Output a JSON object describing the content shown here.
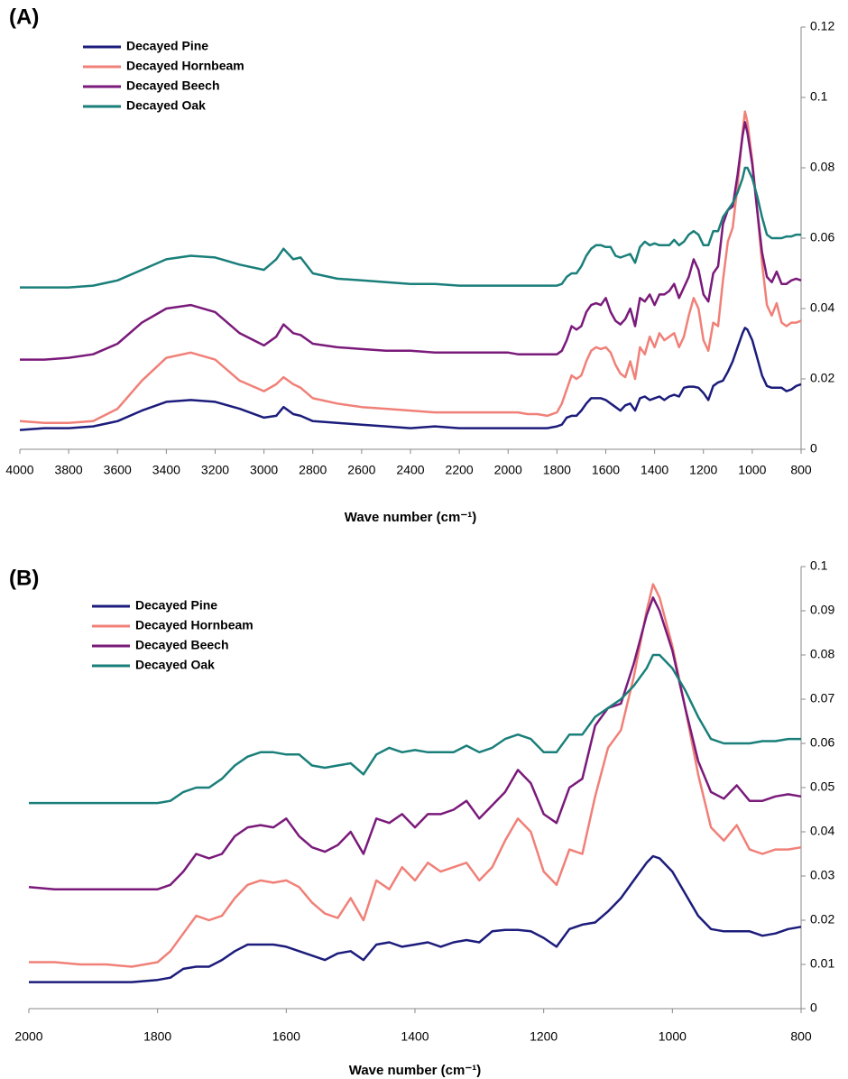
{
  "chart_data": [
    {
      "type": "line",
      "title": "(A)",
      "xlabel": "Wave number (cm⁻¹)",
      "xlim": [
        4000,
        800
      ],
      "xticks": [
        4000,
        3800,
        3600,
        3400,
        3200,
        3000,
        2800,
        2600,
        2400,
        2200,
        2000,
        1800,
        1600,
        1400,
        1200,
        1000,
        800
      ],
      "ylim": [
        0,
        0.12
      ],
      "yticks": [
        0,
        0.02,
        0.04,
        0.06,
        0.08,
        0.1,
        0.12
      ],
      "legend": "upper left",
      "x": [
        4000,
        3900,
        3800,
        3700,
        3600,
        3500,
        3400,
        3300,
        3200,
        3100,
        3000,
        2950,
        2920,
        2880,
        2850,
        2800,
        2700,
        2600,
        2500,
        2400,
        2300,
        2200,
        2100,
        2000,
        1960,
        1920,
        1880,
        1840,
        1800,
        1780,
        1760,
        1740,
        1720,
        1700,
        1680,
        1660,
        1640,
        1620,
        1600,
        1580,
        1560,
        1540,
        1520,
        1500,
        1480,
        1460,
        1440,
        1420,
        1400,
        1380,
        1360,
        1340,
        1320,
        1300,
        1280,
        1260,
        1240,
        1220,
        1200,
        1180,
        1160,
        1140,
        1120,
        1100,
        1080,
        1060,
        1040,
        1030,
        1020,
        1000,
        980,
        960,
        940,
        920,
        900,
        880,
        860,
        840,
        820,
        800
      ],
      "series": [
        {
          "name": "Decayed Pine",
          "color": "#1c1c7c",
          "values": [
            0.0055,
            0.006,
            0.006,
            0.0065,
            0.008,
            0.011,
            0.0135,
            0.014,
            0.0135,
            0.0115,
            0.009,
            0.0095,
            0.012,
            0.01,
            0.0095,
            0.008,
            0.0075,
            0.007,
            0.0065,
            0.006,
            0.0065,
            0.006,
            0.006,
            0.006,
            0.006,
            0.006,
            0.006,
            0.006,
            0.0065,
            0.007,
            0.009,
            0.0095,
            0.0095,
            0.011,
            0.013,
            0.0145,
            0.0145,
            0.0145,
            0.014,
            0.013,
            0.012,
            0.011,
            0.0125,
            0.013,
            0.011,
            0.0145,
            0.015,
            0.014,
            0.0145,
            0.015,
            0.014,
            0.015,
            0.0155,
            0.015,
            0.0175,
            0.0178,
            0.0178,
            0.0175,
            0.016,
            0.014,
            0.018,
            0.019,
            0.0195,
            0.022,
            0.025,
            0.029,
            0.033,
            0.0345,
            0.034,
            0.031,
            0.026,
            0.021,
            0.018,
            0.0175,
            0.0175,
            0.0175,
            0.0165,
            0.017,
            0.018,
            0.0185
          ]
        },
        {
          "name": "Decayed Hornbeam",
          "color": "#f08078",
          "values": [
            0.008,
            0.0075,
            0.0075,
            0.008,
            0.0115,
            0.0195,
            0.026,
            0.0275,
            0.0255,
            0.0195,
            0.0165,
            0.0185,
            0.0205,
            0.0185,
            0.0175,
            0.0145,
            0.013,
            0.012,
            0.0115,
            0.011,
            0.0105,
            0.0105,
            0.0105,
            0.0105,
            0.0105,
            0.01,
            0.01,
            0.0095,
            0.0105,
            0.013,
            0.017,
            0.021,
            0.02,
            0.021,
            0.025,
            0.028,
            0.029,
            0.0285,
            0.029,
            0.0275,
            0.024,
            0.0215,
            0.0205,
            0.025,
            0.02,
            0.029,
            0.027,
            0.032,
            0.029,
            0.033,
            0.031,
            0.032,
            0.033,
            0.029,
            0.032,
            0.038,
            0.043,
            0.04,
            0.031,
            0.028,
            0.036,
            0.035,
            0.048,
            0.059,
            0.063,
            0.075,
            0.09,
            0.096,
            0.093,
            0.082,
            0.068,
            0.053,
            0.041,
            0.038,
            0.0415,
            0.036,
            0.035,
            0.036,
            0.036,
            0.0365
          ]
        },
        {
          "name": "Decayed Beech",
          "color": "#7a1a7a",
          "values": [
            0.0255,
            0.0255,
            0.026,
            0.027,
            0.03,
            0.036,
            0.04,
            0.041,
            0.039,
            0.033,
            0.0295,
            0.032,
            0.0355,
            0.033,
            0.0325,
            0.03,
            0.029,
            0.0285,
            0.028,
            0.028,
            0.0275,
            0.0275,
            0.0275,
            0.0275,
            0.027,
            0.027,
            0.027,
            0.027,
            0.027,
            0.028,
            0.031,
            0.035,
            0.034,
            0.035,
            0.039,
            0.041,
            0.0415,
            0.041,
            0.043,
            0.039,
            0.0365,
            0.0355,
            0.037,
            0.04,
            0.035,
            0.043,
            0.042,
            0.044,
            0.041,
            0.044,
            0.044,
            0.045,
            0.047,
            0.043,
            0.046,
            0.049,
            0.054,
            0.051,
            0.044,
            0.042,
            0.05,
            0.052,
            0.064,
            0.068,
            0.069,
            0.078,
            0.089,
            0.093,
            0.09,
            0.081,
            0.068,
            0.056,
            0.049,
            0.0475,
            0.0505,
            0.047,
            0.047,
            0.048,
            0.0485,
            0.048
          ]
        },
        {
          "name": "Decayed Oak",
          "color": "#1a7f7a",
          "values": [
            0.046,
            0.046,
            0.046,
            0.0465,
            0.048,
            0.051,
            0.054,
            0.055,
            0.0545,
            0.0525,
            0.051,
            0.054,
            0.057,
            0.054,
            0.0545,
            0.05,
            0.0485,
            0.048,
            0.0475,
            0.047,
            0.047,
            0.0465,
            0.0465,
            0.0465,
            0.0465,
            0.0465,
            0.0465,
            0.0465,
            0.0465,
            0.047,
            0.049,
            0.05,
            0.05,
            0.052,
            0.055,
            0.057,
            0.058,
            0.058,
            0.0575,
            0.0575,
            0.055,
            0.0545,
            0.055,
            0.0555,
            0.053,
            0.0575,
            0.059,
            0.058,
            0.0585,
            0.058,
            0.058,
            0.058,
            0.0595,
            0.058,
            0.059,
            0.061,
            0.062,
            0.061,
            0.058,
            0.058,
            0.062,
            0.062,
            0.066,
            0.068,
            0.07,
            0.073,
            0.077,
            0.08,
            0.08,
            0.077,
            0.072,
            0.066,
            0.061,
            0.06,
            0.06,
            0.06,
            0.0605,
            0.0605,
            0.061,
            0.061
          ]
        }
      ]
    },
    {
      "type": "line",
      "title": "(B)",
      "xlabel": "Wave number (cm⁻¹)",
      "xlim": [
        2000,
        800
      ],
      "xticks": [
        2000,
        1800,
        1600,
        1400,
        1200,
        1000,
        800
      ],
      "ylim": [
        0,
        0.1
      ],
      "yticks": [
        0,
        0.01,
        0.02,
        0.03,
        0.04,
        0.05,
        0.06,
        0.07,
        0.08,
        0.09,
        0.1
      ],
      "legend": "upper left",
      "x": [
        2000,
        1960,
        1920,
        1880,
        1840,
        1800,
        1780,
        1760,
        1740,
        1720,
        1700,
        1680,
        1660,
        1640,
        1620,
        1600,
        1580,
        1560,
        1540,
        1520,
        1500,
        1480,
        1460,
        1440,
        1420,
        1400,
        1380,
        1360,
        1340,
        1320,
        1300,
        1280,
        1260,
        1240,
        1220,
        1200,
        1180,
        1160,
        1140,
        1120,
        1100,
        1080,
        1060,
        1040,
        1030,
        1020,
        1000,
        980,
        960,
        940,
        920,
        900,
        880,
        860,
        840,
        820,
        800
      ],
      "series": [
        {
          "name": "Decayed Pine",
          "color": "#1c1c7c",
          "values": [
            0.006,
            0.006,
            0.006,
            0.006,
            0.006,
            0.0065,
            0.007,
            0.009,
            0.0095,
            0.0095,
            0.011,
            0.013,
            0.0145,
            0.0145,
            0.0145,
            0.014,
            0.013,
            0.012,
            0.011,
            0.0125,
            0.013,
            0.011,
            0.0145,
            0.015,
            0.014,
            0.0145,
            0.015,
            0.014,
            0.015,
            0.0155,
            0.015,
            0.0175,
            0.0178,
            0.0178,
            0.0175,
            0.016,
            0.014,
            0.018,
            0.019,
            0.0195,
            0.022,
            0.025,
            0.029,
            0.033,
            0.0345,
            0.034,
            0.031,
            0.026,
            0.021,
            0.018,
            0.0175,
            0.0175,
            0.0175,
            0.0165,
            0.017,
            0.018,
            0.0185
          ]
        },
        {
          "name": "Decayed Hornbeam",
          "color": "#f08078",
          "values": [
            0.0105,
            0.0105,
            0.01,
            0.01,
            0.0095,
            0.0105,
            0.013,
            0.017,
            0.021,
            0.02,
            0.021,
            0.025,
            0.028,
            0.029,
            0.0285,
            0.029,
            0.0275,
            0.024,
            0.0215,
            0.0205,
            0.025,
            0.02,
            0.029,
            0.027,
            0.032,
            0.029,
            0.033,
            0.031,
            0.032,
            0.033,
            0.029,
            0.032,
            0.038,
            0.043,
            0.04,
            0.031,
            0.028,
            0.036,
            0.035,
            0.048,
            0.059,
            0.063,
            0.075,
            0.09,
            0.096,
            0.093,
            0.082,
            0.068,
            0.053,
            0.041,
            0.038,
            0.0415,
            0.036,
            0.035,
            0.036,
            0.036,
            0.0365
          ]
        },
        {
          "name": "Decayed Beech",
          "color": "#7a1a7a",
          "values": [
            0.0275,
            0.027,
            0.027,
            0.027,
            0.027,
            0.027,
            0.028,
            0.031,
            0.035,
            0.034,
            0.035,
            0.039,
            0.041,
            0.0415,
            0.041,
            0.043,
            0.039,
            0.0365,
            0.0355,
            0.037,
            0.04,
            0.035,
            0.043,
            0.042,
            0.044,
            0.041,
            0.044,
            0.044,
            0.045,
            0.047,
            0.043,
            0.046,
            0.049,
            0.054,
            0.051,
            0.044,
            0.042,
            0.05,
            0.052,
            0.064,
            0.068,
            0.069,
            0.078,
            0.089,
            0.093,
            0.09,
            0.081,
            0.068,
            0.056,
            0.049,
            0.0475,
            0.0505,
            0.047,
            0.047,
            0.048,
            0.0485,
            0.048
          ]
        },
        {
          "name": "Decayed Oak",
          "color": "#1a7f7a",
          "values": [
            0.0465,
            0.0465,
            0.0465,
            0.0465,
            0.0465,
            0.0465,
            0.047,
            0.049,
            0.05,
            0.05,
            0.052,
            0.055,
            0.057,
            0.058,
            0.058,
            0.0575,
            0.0575,
            0.055,
            0.0545,
            0.055,
            0.0555,
            0.053,
            0.0575,
            0.059,
            0.058,
            0.0585,
            0.058,
            0.058,
            0.058,
            0.0595,
            0.058,
            0.059,
            0.061,
            0.062,
            0.061,
            0.058,
            0.058,
            0.062,
            0.062,
            0.066,
            0.068,
            0.07,
            0.073,
            0.077,
            0.08,
            0.08,
            0.077,
            0.072,
            0.066,
            0.061,
            0.06,
            0.06,
            0.06,
            0.0605,
            0.0605,
            0.061,
            0.061
          ]
        }
      ]
    }
  ]
}
